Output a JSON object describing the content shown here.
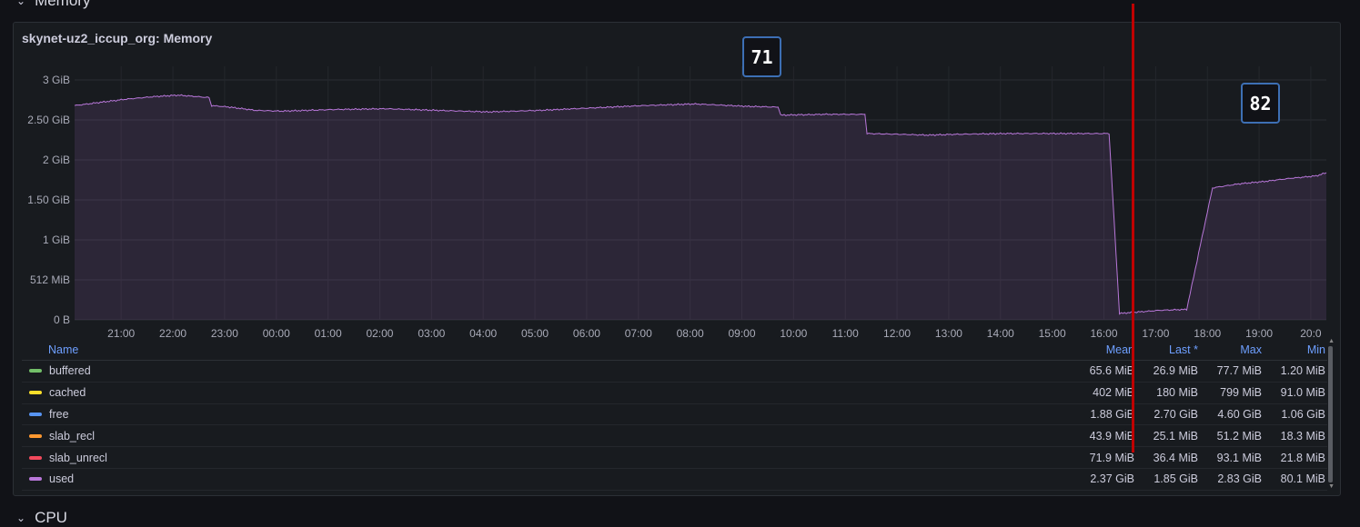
{
  "rows": {
    "memory": "Memory",
    "cpu": "CPU"
  },
  "panel": {
    "title": "skynet-uz2_iccup_org: Memory"
  },
  "chart_data": {
    "type": "area",
    "y_ticks": [
      "0 B",
      "512 MiB",
      "1 GiB",
      "1.50 GiB",
      "2 GiB",
      "2.50 GiB",
      "3 GiB"
    ],
    "x_ticks": [
      "21:00",
      "22:00",
      "23:00",
      "00:00",
      "01:00",
      "02:00",
      "03:00",
      "04:00",
      "05:00",
      "06:00",
      "07:00",
      "08:00",
      "09:00",
      "10:00",
      "11:00",
      "12:00",
      "13:00",
      "14:00",
      "15:00",
      "16:00",
      "17:00",
      "18:00",
      "19:00",
      "20:0"
    ],
    "ylim": [
      0,
      3.2
    ],
    "y_unit": "GiB",
    "series": [
      {
        "name": "used",
        "color": "#b877d9",
        "x_hours": [
          0,
          0.5,
          1.0,
          1.5,
          2.0,
          2.6,
          2.65,
          3.0,
          3.5,
          4.0,
          5.0,
          6.0,
          7.0,
          8.0,
          9.0,
          10.0,
          11.0,
          12.0,
          13.0,
          13.6,
          13.65,
          14.5,
          15.28,
          15.32,
          16.0,
          16.5,
          17.0,
          18.0,
          19.0,
          19.7,
          20.0,
          20.2,
          20.6,
          21.0,
          21.5,
          22.0,
          22.5,
          23.0,
          23.5,
          24.0,
          24.2
        ],
        "y_gib": [
          2.68,
          2.72,
          2.76,
          2.79,
          2.81,
          2.78,
          2.68,
          2.66,
          2.62,
          2.61,
          2.63,
          2.64,
          2.62,
          2.6,
          2.62,
          2.65,
          2.68,
          2.7,
          2.67,
          2.66,
          2.56,
          2.57,
          2.57,
          2.33,
          2.32,
          2.31,
          2.32,
          2.33,
          2.33,
          2.33,
          2.33,
          0.08,
          0.1,
          0.12,
          0.13,
          1.65,
          1.7,
          1.73,
          1.77,
          1.8,
          1.84
        ]
      }
    ]
  },
  "legend": {
    "headers": {
      "name": "Name",
      "mean": "Mean",
      "last": "Last *",
      "max": "Max",
      "min": "Min"
    },
    "rows": [
      {
        "name": "buffered",
        "color": "#73bf69",
        "mean": "65.6 MiB",
        "last": "26.9 MiB",
        "max": "77.7 MiB",
        "min": "1.20 MiB"
      },
      {
        "name": "cached",
        "color": "#fade2a",
        "mean": "402 MiB",
        "last": "180 MiB",
        "max": "799 MiB",
        "min": "91.0 MiB"
      },
      {
        "name": "free",
        "color": "#5794f2",
        "mean": "1.88 GiB",
        "last": "2.70 GiB",
        "max": "4.60 GiB",
        "min": "1.06 GiB"
      },
      {
        "name": "slab_recl",
        "color": "#ff9830",
        "mean": "43.9 MiB",
        "last": "25.1 MiB",
        "max": "51.2 MiB",
        "min": "18.3 MiB"
      },
      {
        "name": "slab_unrecl",
        "color": "#f2495c",
        "mean": "71.9 MiB",
        "last": "36.4 MiB",
        "max": "93.1 MiB",
        "min": "21.8 MiB"
      },
      {
        "name": "used",
        "color": "#b877d9",
        "mean": "2.37 GiB",
        "last": "1.85 GiB",
        "max": "2.83 GiB",
        "min": "80.1 MiB"
      }
    ]
  },
  "annotations": {
    "a1": "71",
    "a2": "82"
  }
}
